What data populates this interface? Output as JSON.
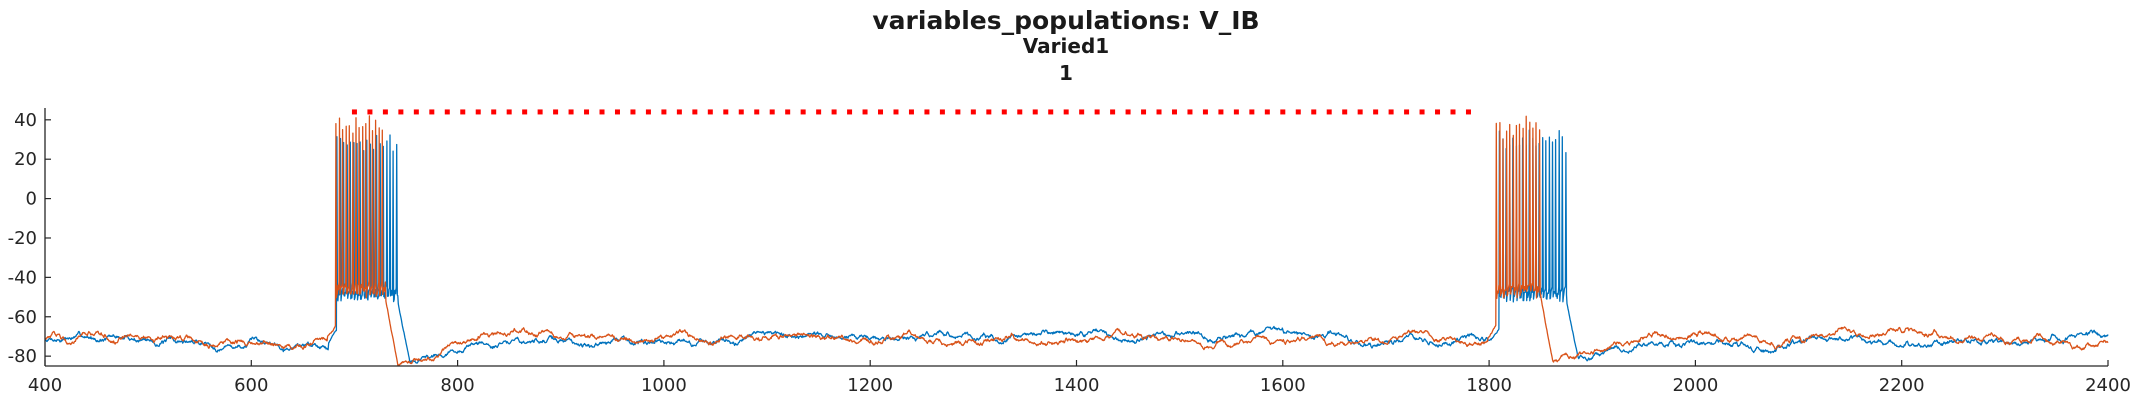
{
  "chart_data": {
    "type": "line",
    "title": "variables_populations: V_IB",
    "subtitle": "Varied1",
    "subtitle2": "1",
    "xlim": [
      400,
      2400
    ],
    "ylim": [
      -85,
      46
    ],
    "xticks": [
      400,
      600,
      800,
      1000,
      1200,
      1400,
      1600,
      1800,
      2000,
      2200,
      2400
    ],
    "yticks": [
      -80,
      -60,
      -40,
      -20,
      0,
      20,
      40
    ],
    "xtick_labels": [
      "400",
      "600",
      "800",
      "1000",
      "1200",
      "1400",
      "1600",
      "1800",
      "2000",
      "2200",
      "2400"
    ],
    "ytick_labels": [
      "-80",
      "-60",
      "-40",
      "-20",
      "0",
      "20",
      "40"
    ],
    "grid": false,
    "series": [
      {
        "color": "#0072BD",
        "baseline_mV": -72,
        "bursts": [
          {
            "start": 683,
            "end": 742,
            "spike_peak": 35,
            "trough": -52
          },
          {
            "start": 1810,
            "end": 1875,
            "spike_peak": 35,
            "trough": -52
          }
        ],
        "post_burst_dip_mV": -83
      },
      {
        "color": "#D95319",
        "baseline_mV": -71,
        "bursts": [
          {
            "start": 682,
            "end": 730,
            "spike_peak": 44,
            "trough": -50
          },
          {
            "start": 1807,
            "end": 1850,
            "spike_peak": 42,
            "trough": -50
          }
        ],
        "post_burst_dip_mV": -84
      }
    ],
    "stimulus_markers": {
      "color": "#FF0000",
      "y": 44,
      "x_start": 700,
      "x_end": 1790,
      "step": 15
    }
  }
}
